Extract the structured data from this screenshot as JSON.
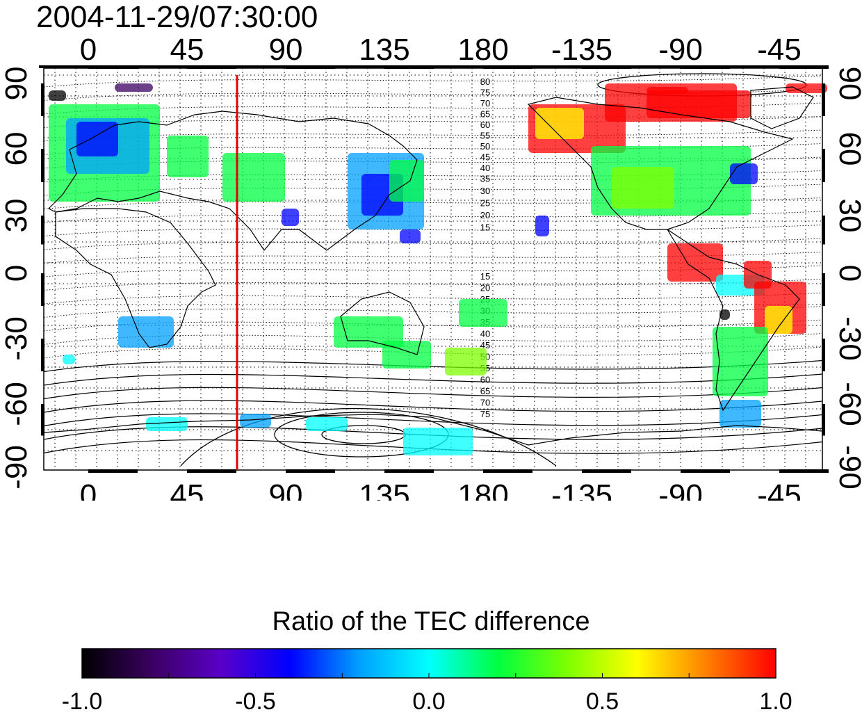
{
  "title": "2004-11-29/07:30:00",
  "map": {
    "top_lon_ticks": [
      "0",
      "45",
      "90",
      "135",
      "180",
      "-135",
      "-90",
      "-45"
    ],
    "bottom_lon_ticks": [
      "0",
      "45",
      "90",
      "135",
      "180",
      "-135",
      "-90",
      "-45"
    ],
    "left_lat_ticks": [
      "90",
      "60",
      "30",
      "0",
      "-30",
      "-60",
      "-90"
    ],
    "right_lat_ticks": [
      "90",
      "60",
      "30",
      "0",
      "-30",
      "-60",
      "-90"
    ],
    "contour_labels_north": [
      "80",
      "75",
      "70",
      "65",
      "60",
      "55",
      "50",
      "45",
      "40",
      "35",
      "30",
      "25",
      "20",
      "15"
    ],
    "contour_labels_south": [
      "15",
      "20",
      "25",
      "30",
      "35",
      "40",
      "45",
      "50",
      "55",
      "60",
      "65",
      "70",
      "75"
    ],
    "marker_line_color": "#e00000"
  },
  "colorbar": {
    "label": "Ratio of the TEC difference",
    "ticks": [
      "-1.0",
      "-0.5",
      "0.0",
      "0.5",
      "1.0"
    ],
    "min": -1.0,
    "max": 1.0,
    "colors": [
      "#000000",
      "#3a0060",
      "#5a00c8",
      "#0000ff",
      "#00a0ff",
      "#00ffff",
      "#00ff40",
      "#7dff00",
      "#ffff00",
      "#ff8000",
      "#ff0000"
    ]
  }
}
